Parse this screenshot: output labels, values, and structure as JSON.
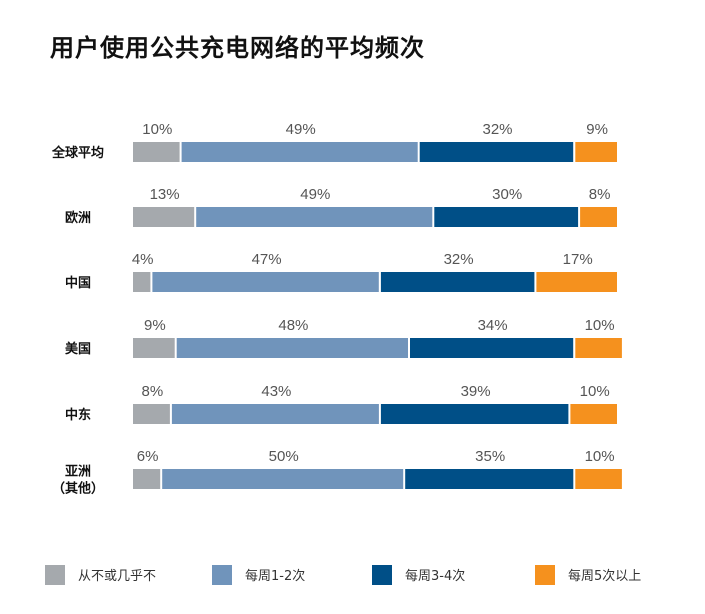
{
  "chart_data": {
    "type": "bar",
    "orientation": "horizontal",
    "stacked": true,
    "title": "用户使用公共充电网络的平均频次",
    "categories": [
      "全球平均",
      "欧洲",
      "中国",
      "美国",
      "中东",
      [
        "亚洲",
        "（其他）"
      ]
    ],
    "series": [
      {
        "name": "从不或几乎不",
        "color": "#a5a9ad",
        "values": [
          10,
          13,
          4,
          9,
          8,
          6
        ],
        "labels": [
          "10%",
          "13%",
          "4%",
          "9%",
          "8%",
          "6%"
        ]
      },
      {
        "name": "每周1-2次",
        "color": "#7094bb",
        "values": [
          49,
          49,
          47,
          48,
          43,
          50
        ],
        "labels": [
          "49%",
          "49%",
          "47%",
          "48%",
          "43%",
          "50%"
        ]
      },
      {
        "name": "每周3-4次",
        "color": "#004f87",
        "values": [
          32,
          30,
          32,
          34,
          39,
          35
        ],
        "labels": [
          "32%",
          "30%",
          "32%",
          "34%",
          "39%",
          "35%"
        ]
      },
      {
        "name": "每周5次以上",
        "color": "#f5911e",
        "values": [
          9,
          8,
          17,
          10,
          10,
          10
        ],
        "labels": [
          "9%",
          "8%",
          "17%",
          "10%",
          "10%",
          "10%"
        ]
      }
    ],
    "xlim": [
      0,
      100
    ],
    "grid": false,
    "legend": "bottom"
  }
}
